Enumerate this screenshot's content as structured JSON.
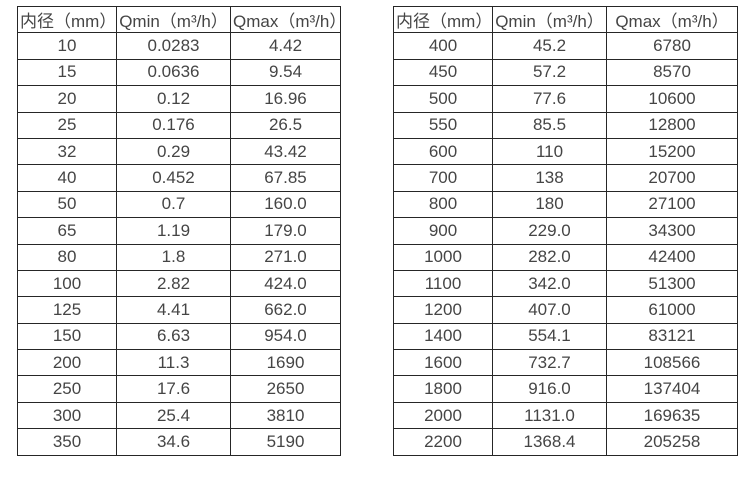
{
  "colors": {
    "border": "#262626",
    "text": "#454545",
    "background": "#ffffff"
  },
  "tables": [
    {
      "id": "left",
      "headers": [
        "内径（mm）",
        "Qmin（m³/h）",
        "Qmax（m³/h）"
      ],
      "rows": [
        [
          "10",
          "0.0283",
          "4.42"
        ],
        [
          "15",
          "0.0636",
          "9.54"
        ],
        [
          "20",
          "0.12",
          "16.96"
        ],
        [
          "25",
          "0.176",
          "26.5"
        ],
        [
          "32",
          "0.29",
          "43.42"
        ],
        [
          "40",
          "0.452",
          "67.85"
        ],
        [
          "50",
          "0.7",
          "160.0"
        ],
        [
          "65",
          "1.19",
          "179.0"
        ],
        [
          "80",
          "1.8",
          "271.0"
        ],
        [
          "100",
          "2.82",
          "424.0"
        ],
        [
          "125",
          "4.41",
          "662.0"
        ],
        [
          "150",
          "6.63",
          "954.0"
        ],
        [
          "200",
          "11.3",
          "1690"
        ],
        [
          "250",
          "17.6",
          "2650"
        ],
        [
          "300",
          "25.4",
          "3810"
        ],
        [
          "350",
          "34.6",
          "5190"
        ]
      ]
    },
    {
      "id": "right",
      "headers": [
        "内径（mm）",
        "Qmin（m³/h）",
        "Qmax（m³/h）"
      ],
      "rows": [
        [
          "400",
          "45.2",
          "6780"
        ],
        [
          "450",
          "57.2",
          "8570"
        ],
        [
          "500",
          "77.6",
          "10600"
        ],
        [
          "550",
          "85.5",
          "12800"
        ],
        [
          "600",
          "110",
          "15200"
        ],
        [
          "700",
          "138",
          "20700"
        ],
        [
          "800",
          "180",
          "27100"
        ],
        [
          "900",
          "229.0",
          "34300"
        ],
        [
          "1000",
          "282.0",
          "42400"
        ],
        [
          "1100",
          "342.0",
          "51300"
        ],
        [
          "1200",
          "407.0",
          "61000"
        ],
        [
          "1400",
          "554.1",
          "83121"
        ],
        [
          "1600",
          "732.7",
          "108566"
        ],
        [
          "1800",
          "916.0",
          "137404"
        ],
        [
          "2000",
          "1131.0",
          "169635"
        ],
        [
          "2200",
          "1368.4",
          "205258"
        ]
      ]
    }
  ]
}
